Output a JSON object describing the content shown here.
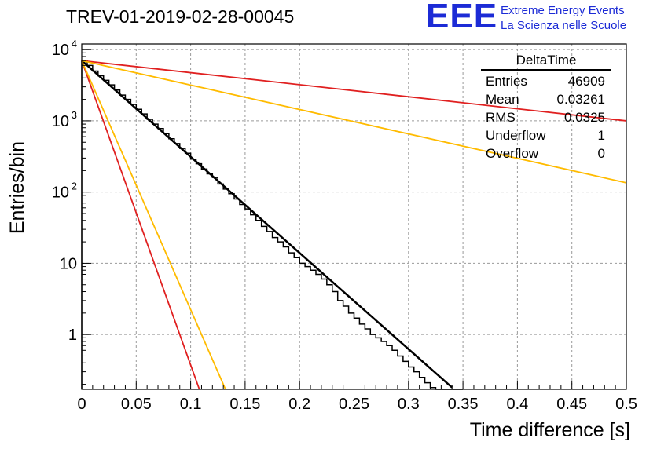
{
  "header": {
    "title": "TREV-01-2019-02-28-00045",
    "logo_text": "EEE",
    "logo_line1": "Extreme Energy Events",
    "logo_line2": "La Scienza nelle Scuole"
  },
  "stats": {
    "title": "DeltaTime",
    "rows": [
      {
        "label": "Entries",
        "value": "46909"
      },
      {
        "label": "Mean",
        "value": "0.03261"
      },
      {
        "label": "RMS",
        "value": "0.0325"
      },
      {
        "label": "Underflow",
        "value": "1"
      },
      {
        "label": "Overflow",
        "value": "0"
      }
    ]
  },
  "chart_data": {
    "type": "histogram",
    "xlabel": "Time difference [s]",
    "ylabel": "Entries/bin",
    "xlim": [
      0,
      0.5
    ],
    "ylim": [
      0.17,
      12000
    ],
    "y_scale": "log",
    "grid": true,
    "x_ticks": [
      "0",
      "0.05",
      "0.1",
      "0.15",
      "0.2",
      "0.25",
      "0.3",
      "0.35",
      "0.4",
      "0.45",
      "0.5"
    ],
    "y_ticks": [
      {
        "value": 1,
        "label": "1"
      },
      {
        "value": 10,
        "label": "10"
      },
      {
        "value": 100,
        "label": "10",
        "exp": "2"
      },
      {
        "value": 1000,
        "label": "10",
        "exp": "3"
      },
      {
        "value": 10000,
        "label": "10",
        "exp": "4"
      }
    ],
    "bin_width": 0.005,
    "histogram": [
      7000,
      6000,
      5000,
      4300,
      3700,
      3200,
      2700,
      2300,
      2000,
      1700,
      1450,
      1250,
      1050,
      900,
      780,
      660,
      560,
      480,
      410,
      350,
      290,
      250,
      210,
      180,
      160,
      130,
      110,
      95,
      80,
      67,
      58,
      48,
      40,
      33,
      28,
      23,
      20,
      17,
      14,
      12,
      10,
      9,
      8,
      7,
      6,
      5,
      4,
      3,
      2.5,
      2,
      1.7,
      1.4,
      1.2,
      1,
      0.9,
      0.8,
      0.7,
      0.6,
      0.5,
      0.42,
      0.35,
      0.3,
      0.25,
      0.21,
      0.18,
      0.15,
      0.13,
      0.11,
      0.09,
      0.08
    ],
    "fit_curves": [
      {
        "color": "#000000",
        "x": [
          0,
          0.34
        ],
        "y": [
          7000,
          0.18
        ]
      },
      {
        "color": "#e02020",
        "x": [
          0,
          0.108
        ],
        "y": [
          7000,
          0.17
        ]
      },
      {
        "color": "#ffbb00",
        "x": [
          0,
          0.132
        ],
        "y": [
          7000,
          0.17
        ]
      },
      {
        "color": "#e02020",
        "x": [
          0,
          0.5
        ],
        "y": [
          7000,
          1000
        ]
      },
      {
        "color": "#ffbb00",
        "x": [
          0,
          0.5
        ],
        "y": [
          7000,
          135
        ]
      }
    ]
  }
}
